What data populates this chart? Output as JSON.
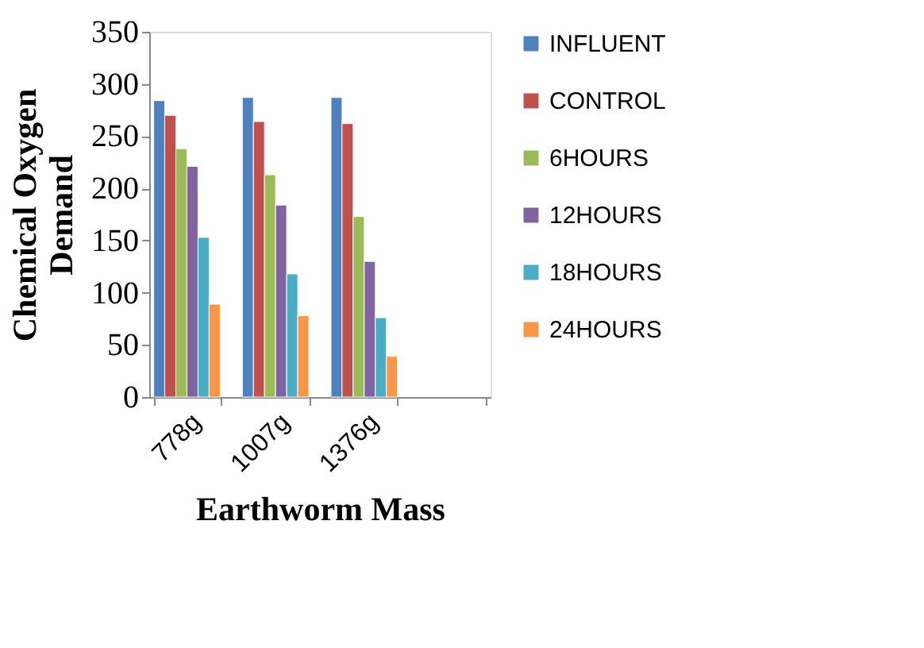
{
  "chart_data": {
    "type": "bar",
    "xlabel": "Earthworm Mass",
    "ylabel": "Chemical Oxygen Demand",
    "categories": [
      "778g",
      "1007g",
      "1376g",
      null
    ],
    "series": [
      {
        "name": "INFLUENT",
        "color": "#4f81bd",
        "values": [
          284,
          287,
          287,
          null
        ]
      },
      {
        "name": "CONTROL",
        "color": "#c0504d",
        "values": [
          270,
          264,
          262,
          null
        ]
      },
      {
        "name": "6HOURS",
        "color": "#9bbb59",
        "values": [
          238,
          213,
          173,
          null
        ]
      },
      {
        "name": "12HOURS",
        "color": "#8064a2",
        "values": [
          221,
          184,
          130,
          null
        ]
      },
      {
        "name": "18HOURS",
        "color": "#4bacc6",
        "values": [
          153,
          118,
          76,
          null
        ]
      },
      {
        "name": "24HOURS",
        "color": "#f79646",
        "values": [
          89,
          78,
          39,
          null
        ]
      }
    ],
    "ylim": [
      0,
      350
    ],
    "yticks": [
      0,
      50,
      100,
      150,
      200,
      250,
      300,
      350
    ],
    "grid": false,
    "legend": "right"
  }
}
